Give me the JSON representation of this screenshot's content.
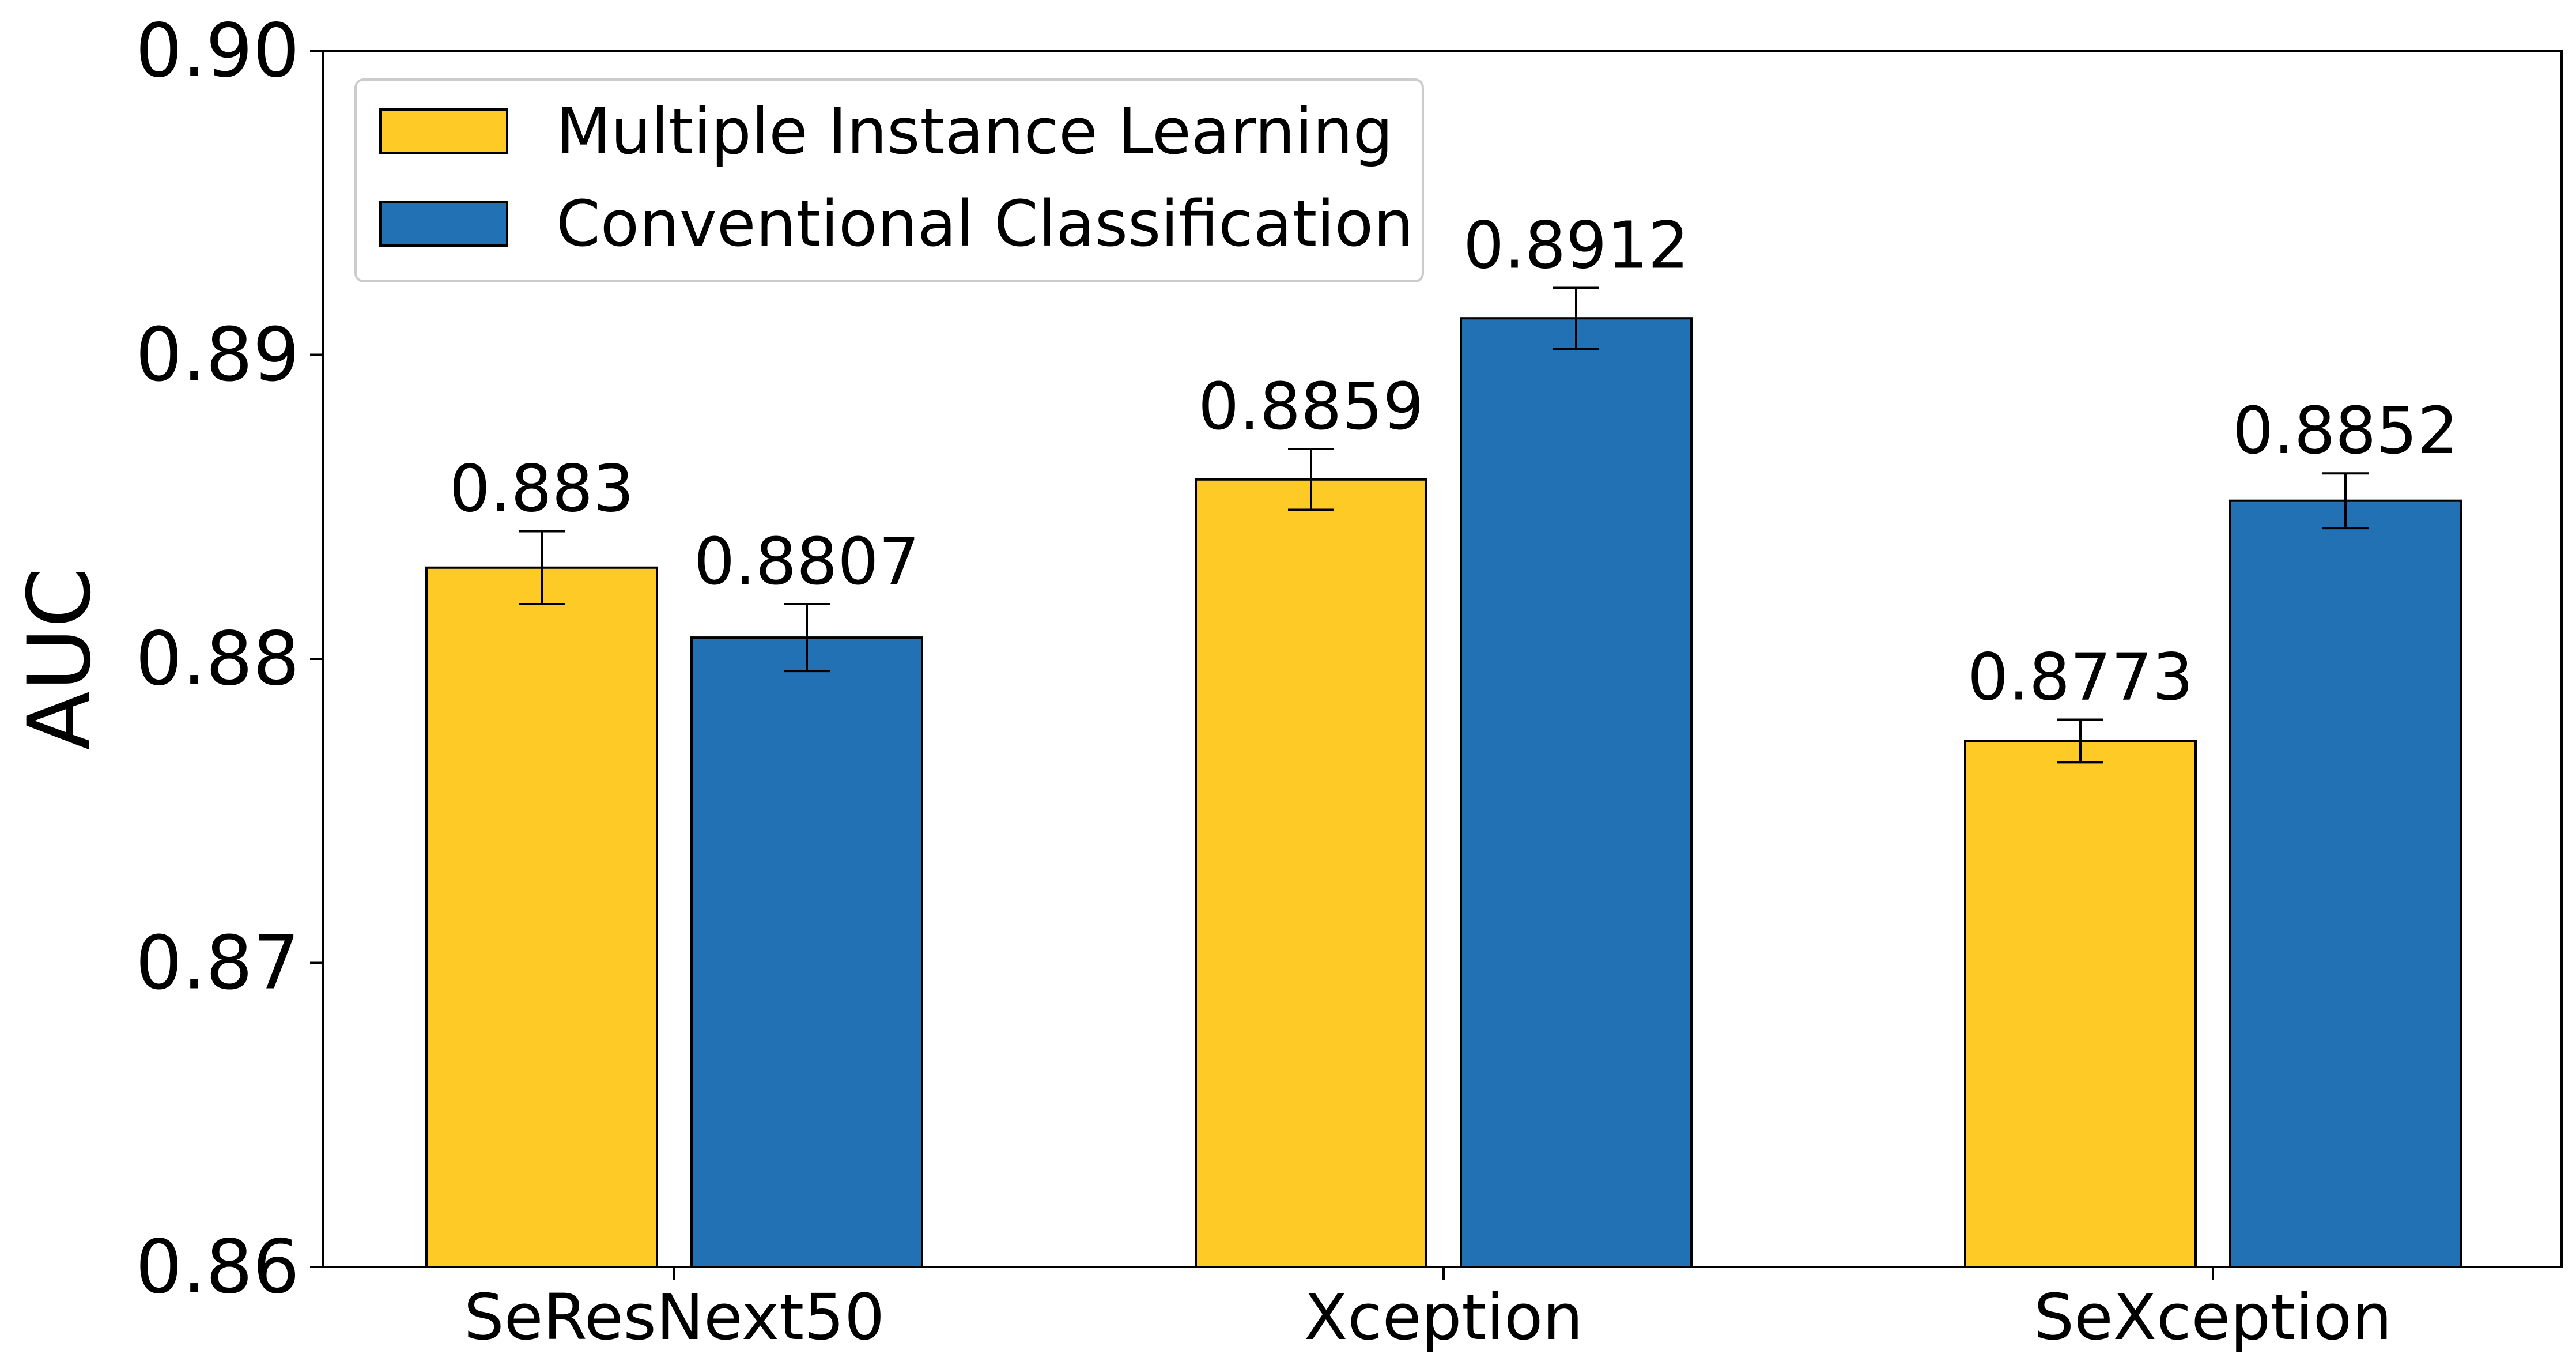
{
  "chart_data": {
    "type": "bar",
    "title": "",
    "xlabel": "",
    "ylabel": "AUC",
    "ylim": [
      0.86,
      0.9
    ],
    "yticks": [
      0.86,
      0.87,
      0.88,
      0.89,
      0.9
    ],
    "ytick_labels": [
      "0.86",
      "0.87",
      "0.88",
      "0.89",
      "0.90"
    ],
    "categories": [
      "SeResNext50",
      "Xception",
      "SeXception"
    ],
    "grid": false,
    "legend_position": "top-left",
    "series": [
      {
        "name": "Multiple Instance Learning",
        "color": "#FDCA26",
        "values": [
          0.883,
          0.8859,
          0.8773
        ],
        "labels": [
          "0.883",
          "0.8859",
          "0.8773"
        ],
        "errors": [
          0.0012,
          0.001,
          0.0007
        ]
      },
      {
        "name": "Conventional Classification",
        "color": "#2271B5",
        "values": [
          0.8807,
          0.8912,
          0.8852
        ],
        "labels": [
          "0.8807",
          "0.8912",
          "0.8852"
        ],
        "errors": [
          0.0011,
          0.001,
          0.0009
        ]
      }
    ]
  }
}
